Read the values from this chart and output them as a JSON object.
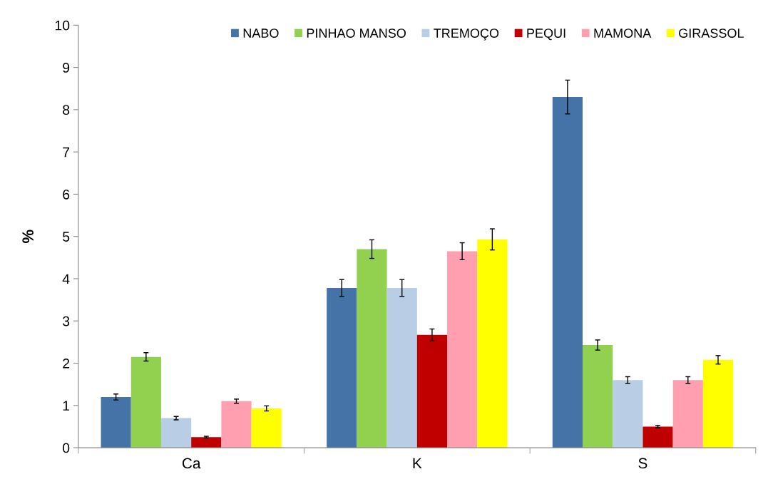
{
  "chart_data": {
    "type": "bar",
    "ylabel": "%",
    "categories": [
      "Ca",
      "K",
      "S"
    ],
    "series": [
      {
        "name": "NABO",
        "color": "#4572a7",
        "values": [
          1.2,
          3.78,
          8.3
        ],
        "errors": [
          0.07,
          0.2,
          0.4
        ]
      },
      {
        "name": "PINHAO MANSO",
        "color": "#92d050",
        "values": [
          2.15,
          4.7,
          2.43
        ],
        "errors": [
          0.1,
          0.22,
          0.12
        ]
      },
      {
        "name": "TREMOÇO",
        "color": "#b9cde5",
        "values": [
          0.7,
          3.78,
          1.6
        ],
        "errors": [
          0.04,
          0.2,
          0.08
        ]
      },
      {
        "name": "PEQUI",
        "color": "#c00000",
        "values": [
          0.25,
          2.67,
          0.5
        ],
        "errors": [
          0.02,
          0.14,
          0.03
        ]
      },
      {
        "name": "MAMONA",
        "color": "#ff9fb0",
        "values": [
          1.1,
          4.65,
          1.6
        ],
        "errors": [
          0.05,
          0.2,
          0.08
        ]
      },
      {
        "name": "GIRASSOL",
        "color": "#ffff00",
        "values": [
          0.93,
          4.93,
          2.08
        ],
        "errors": [
          0.06,
          0.25,
          0.1
        ]
      }
    ],
    "ylim": [
      0,
      10
    ],
    "yticks": [
      0,
      1,
      2,
      3,
      4,
      5,
      6,
      7,
      8,
      9,
      10
    ],
    "grid": false,
    "legend": "top right"
  }
}
